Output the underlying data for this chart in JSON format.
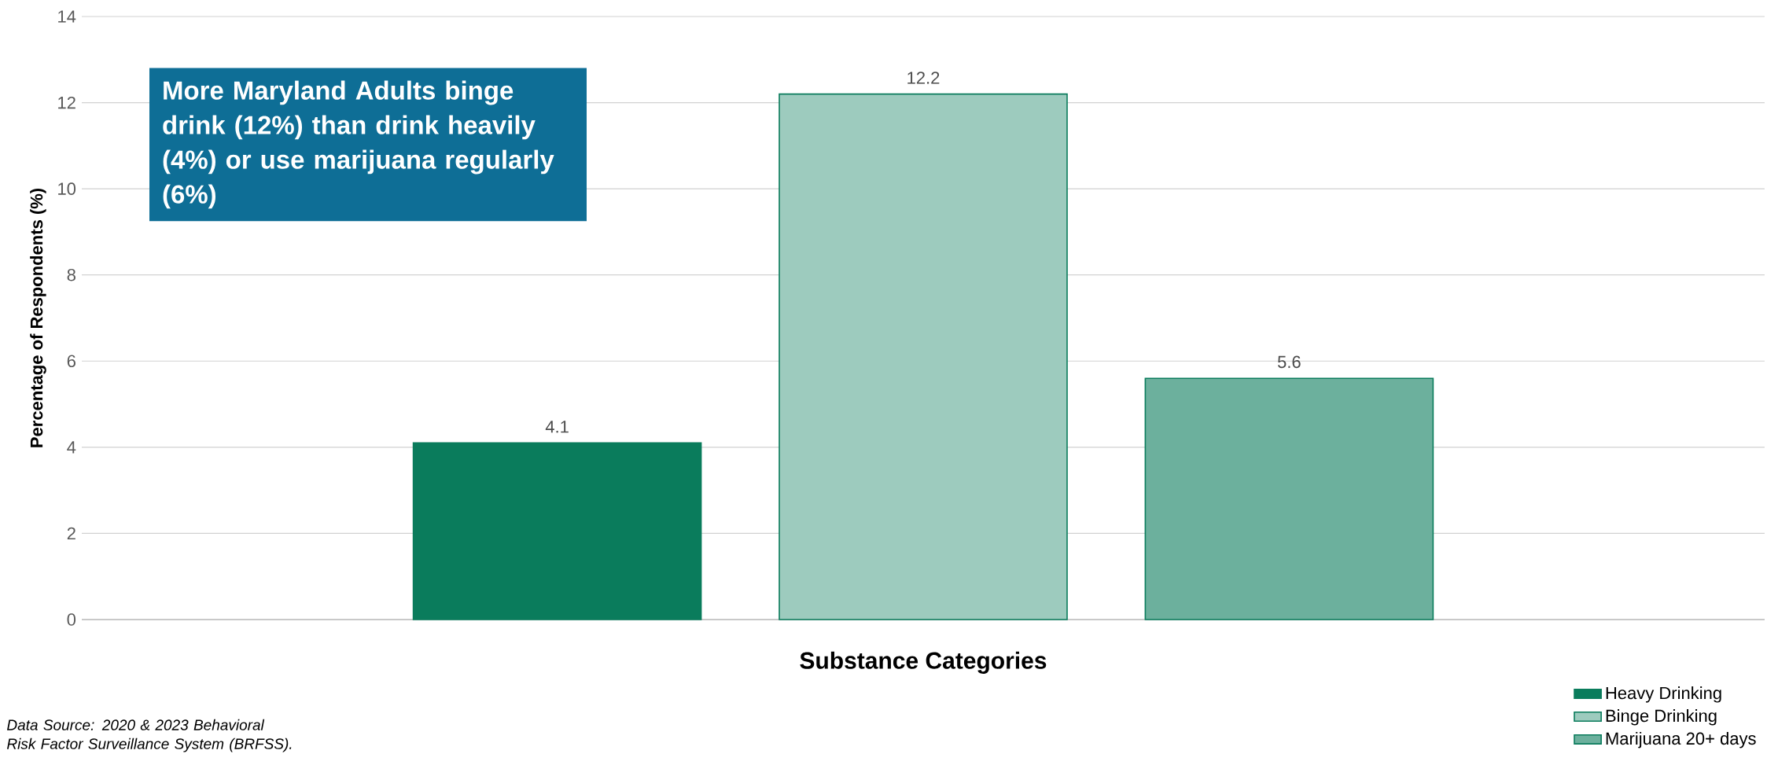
{
  "chart_data": {
    "type": "bar",
    "categories": [
      null
    ],
    "series": [
      {
        "name": "Heavy Drinking",
        "color": "#0a7c5c",
        "values": [
          4.1
        ]
      },
      {
        "name": "Binge Drinking",
        "color": "#0a7c5c",
        "values": [
          12.2
        ]
      },
      {
        "name": "Marijuana 20+ days",
        "color": "#0a7c5c",
        "values": [
          5.6
        ]
      }
    ],
    "xlabel": "Substance Categories",
    "ylabel": "Percentage of Respondents (%)",
    "ylim": [
      0,
      14
    ],
    "yticks": [
      0,
      2,
      4,
      6,
      8,
      10,
      12,
      14
    ],
    "grid": "y",
    "legend": "bottom right",
    "data_labels": true,
    "annotations": [
      "More Maryland Adults binge drink (12%) than drink heavily (4%) or use marijuana regularly (6%)",
      "Data Source: 2020 & 2023 Behavioral Risk Factor Surveillance System (BRFSS)."
    ]
  }
}
